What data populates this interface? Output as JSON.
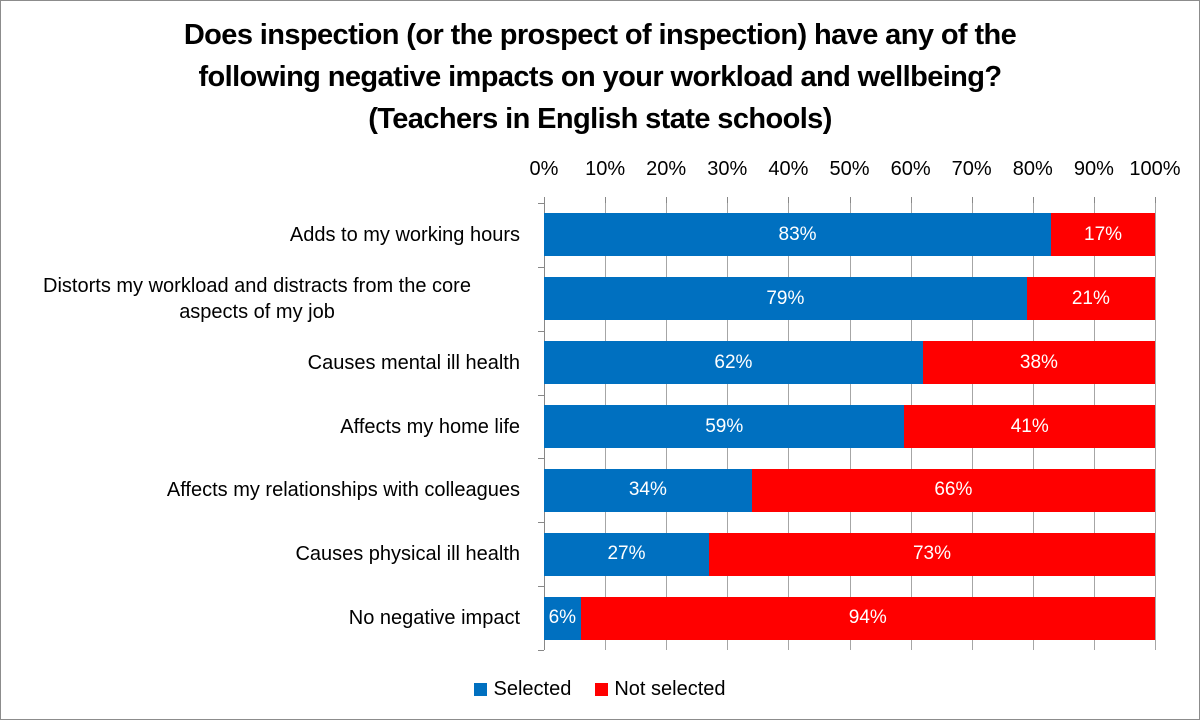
{
  "chart_data": {
    "type": "bar",
    "orientation": "horizontal",
    "stacked": true,
    "title": "Does inspection (or the prospect of inspection) have any of the following negative impacts on your workload and wellbeing? (Teachers in English state schools)",
    "title_lines": [
      "Does inspection (or the prospect of inspection) have any of the",
      "following negative impacts on your workload and wellbeing?",
      "(Teachers in English state schools)"
    ],
    "xlabel": "",
    "ylabel": "",
    "xlim": [
      0,
      100
    ],
    "x_ticks": [
      "0%",
      "10%",
      "20%",
      "30%",
      "40%",
      "50%",
      "60%",
      "70%",
      "80%",
      "90%",
      "100%"
    ],
    "x_axis_position": "top",
    "grid": true,
    "legend_position": "bottom",
    "categories": [
      "Adds to my working hours",
      "Distorts my workload and distracts from the core aspects of my job",
      "Causes mental ill health",
      "Affects my home life",
      "Affects my relationships with colleagues",
      "Causes physical ill health",
      "No negative impact"
    ],
    "category_lines": [
      [
        "Adds to my working hours"
      ],
      [
        "Distorts my workload and distracts from the core",
        "aspects of my job"
      ],
      [
        "Causes mental ill health"
      ],
      [
        "Affects my home life"
      ],
      [
        "Affects my relationships with colleagues"
      ],
      [
        "Causes physical ill health"
      ],
      [
        "No negative impact"
      ]
    ],
    "series": [
      {
        "name": "Selected",
        "color": "#0070C0",
        "values": [
          83,
          79,
          62,
          59,
          34,
          27,
          6
        ],
        "labels": [
          "83%",
          "79%",
          "62%",
          "59%",
          "34%",
          "27%",
          "6%"
        ]
      },
      {
        "name": "Not selected",
        "color": "#FF0000",
        "values": [
          17,
          21,
          38,
          41,
          66,
          73,
          94
        ],
        "labels": [
          "17%",
          "21%",
          "38%",
          "41%",
          "66%",
          "73%",
          "94%"
        ]
      }
    ]
  }
}
